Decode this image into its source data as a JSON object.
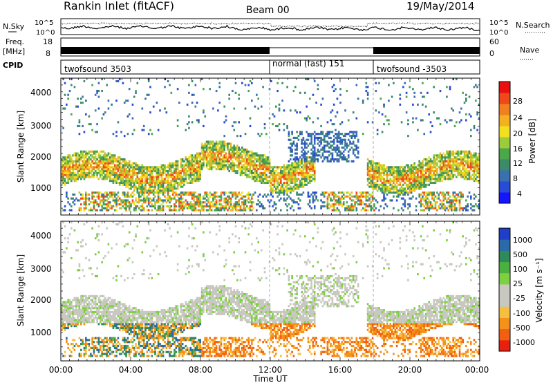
{
  "header": {
    "site": "Rankin Inlet (fitACF)",
    "beam": "Beam 00",
    "date": "19/May/2014"
  },
  "left_labels": {
    "nsky": "N.Sky",
    "freq": "Freq.",
    "freq_unit": "[MHz]",
    "cpid": "CPID"
  },
  "right_labels": {
    "nsearch": "N.Search",
    "nave": "Nave"
  },
  "noise_axis": {
    "left_ticks": [
      "10^5",
      "10^0"
    ],
    "right_ticks": [
      "10^5",
      "10^0"
    ]
  },
  "freq_axis": {
    "left_ticks": [
      "18",
      "8"
    ],
    "right_ticks": [
      "60",
      "0"
    ]
  },
  "cpid_segments": [
    {
      "label": "twofsound 3503",
      "start_hour": 0,
      "end_hour": 12
    },
    {
      "label": "normal (fast) 151",
      "start_hour": 12,
      "end_hour": 18
    },
    {
      "label": "twofsound -3503",
      "start_hour": 18,
      "end_hour": 24
    }
  ],
  "xaxis": {
    "label": "Time UT",
    "ticks": [
      "00:00",
      "04:00",
      "08:00",
      "12:00",
      "16:00",
      "20:00",
      "00:00"
    ]
  },
  "power_panel": {
    "ylabel": "Slant Range [km]",
    "yticks": [
      "4000",
      "3000",
      "2000",
      "1000"
    ],
    "colorbar_label": "Power [dB]",
    "colorbar_ticks": [
      "28",
      "24",
      "20",
      "16",
      "12",
      "8",
      "4"
    ],
    "colors": [
      "#1515ff",
      "#2a4bd6",
      "#3a6fb0",
      "#3c8a6a",
      "#4aa84a",
      "#9ccc3a",
      "#f0e020",
      "#f5b020",
      "#f08020",
      "#f04818",
      "#e81010"
    ]
  },
  "velocity_panel": {
    "ylabel": "Slant Range [km]",
    "yticks": [
      "4000",
      "3000",
      "2000",
      "1000"
    ],
    "colorbar_label": "Velocity [m s⁻¹]",
    "colorbar_ticks": [
      "1000",
      "500",
      "100",
      "25",
      "-25",
      "-100",
      "-500",
      "-1000"
    ],
    "colors": [
      "#1f3fc8",
      "#2a6aa8",
      "#2e8a5a",
      "#4ab040",
      "#7ed040",
      "#c8c8c0",
      "#c8c8c0",
      "#f5c040",
      "#f59018",
      "#f06010",
      "#e82010"
    ]
  },
  "chart_data": {
    "type": "heatmap",
    "x_range_hours": [
      0,
      24
    ],
    "y_range_km": [
      180,
      4500
    ],
    "note_bands": [
      {
        "panel": "power",
        "hours": [
          0,
          6
        ],
        "range_km": [
          1000,
          2200
        ],
        "level_db": 16
      },
      {
        "panel": "power",
        "hours": [
          18,
          24
        ],
        "range_km": [
          1200,
          2000
        ],
        "level_db": 16
      },
      {
        "panel": "velocity",
        "hours": [
          0,
          24
        ],
        "range_km": [
          1600,
          2400
        ],
        "level_ms": 0
      },
      {
        "panel": "velocity",
        "hours": [
          0,
          8
        ],
        "range_km": [
          500,
          900
        ],
        "level_ms": -200
      }
    ]
  }
}
